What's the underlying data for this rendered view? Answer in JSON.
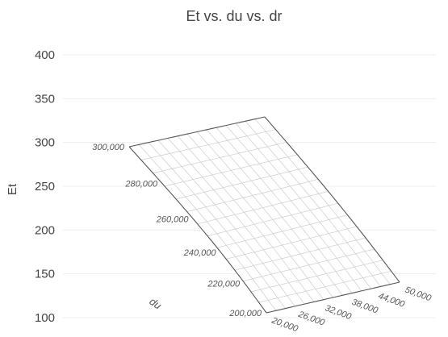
{
  "chart_data": {
    "type": "surface",
    "title": "Et vs. du vs. dr",
    "ylabel": "Et",
    "xlabel": "du",
    "ylim": [
      100,
      400
    ],
    "y_ticks": [
      "400",
      "350",
      "300",
      "250",
      "200",
      "150",
      "100"
    ],
    "y_tick_values": [
      400,
      350,
      300,
      250,
      200,
      150,
      100
    ],
    "du_ticks": [
      "300,000",
      "280,000",
      "260,000",
      "240,000",
      "220,000",
      "200,000"
    ],
    "du_tick_values": [
      300000,
      280000,
      260000,
      240000,
      220000,
      200000
    ],
    "dr_ticks": [
      "20,000",
      "26,000",
      "32,000",
      "38,000",
      "44,000",
      "50,000"
    ],
    "dr_tick_values": [
      20000,
      26000,
      32000,
      38000,
      44000,
      50000
    ],
    "surface_color": "#ffffff",
    "mesh_color": "#cccccc",
    "edge_color": "#555555",
    "grid": true
  }
}
